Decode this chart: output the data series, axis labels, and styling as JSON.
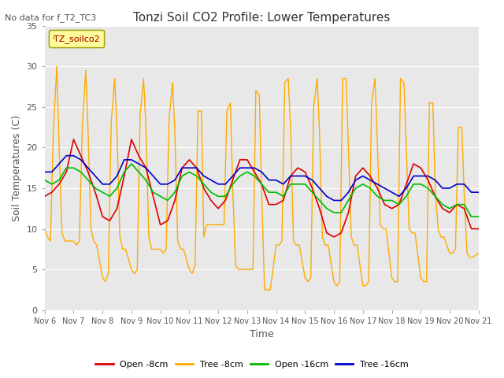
{
  "title": "Tonzi Soil CO2 Profile: Lower Temperatures",
  "subtitle": "No data for f_T2_TC3",
  "ylabel": "Soil Temperatures (C)",
  "xlabel": "Time",
  "legend_label": "TZ_soilco2",
  "xtick_labels": [
    "Nov 6",
    "Nov 7",
    "Nov 8",
    "Nov 9",
    "Nov 10",
    "Nov 11",
    "Nov 12",
    "Nov 13",
    "Nov 14",
    "Nov 15",
    "Nov 16",
    "Nov 17",
    "Nov 18",
    "Nov 19",
    "Nov 20",
    "Nov 21"
  ],
  "ylim": [
    0,
    35
  ],
  "xlim": [
    0,
    15
  ],
  "plot_bg_color": "#e8e8e8",
  "grid_color": "#ffffff",
  "series": [
    {
      "name": "Open -8cm",
      "color": "#dd0000"
    },
    {
      "name": "Tree -8cm",
      "color": "#ffaa00"
    },
    {
      "name": "Open -16cm",
      "color": "#00bb00"
    },
    {
      "name": "Tree -16cm",
      "color": "#0000cc"
    }
  ],
  "open8_x": [
    0.0,
    0.25,
    0.5,
    0.75,
    1.0,
    1.25,
    1.5,
    1.75,
    2.0,
    2.25,
    2.5,
    2.75,
    3.0,
    3.25,
    3.5,
    3.75,
    4.0,
    4.25,
    4.5,
    4.75,
    5.0,
    5.25,
    5.5,
    5.75,
    6.0,
    6.25,
    6.5,
    6.75,
    7.0,
    7.25,
    7.5,
    7.75,
    8.0,
    8.25,
    8.5,
    8.75,
    9.0,
    9.25,
    9.5,
    9.75,
    10.0,
    10.25,
    10.5,
    10.75,
    11.0,
    11.25,
    11.5,
    11.75,
    12.0,
    12.25,
    12.5,
    12.75,
    13.0,
    13.25,
    13.5,
    13.75,
    14.0,
    14.25,
    14.5,
    14.75,
    15.0
  ],
  "open8_y": [
    14.0,
    14.5,
    15.5,
    17.0,
    21.0,
    19.0,
    17.0,
    14.5,
    11.5,
    11.0,
    12.5,
    16.5,
    21.0,
    19.0,
    17.5,
    14.0,
    10.5,
    11.0,
    13.5,
    17.5,
    18.5,
    17.5,
    15.0,
    13.5,
    12.5,
    13.5,
    16.0,
    18.5,
    18.5,
    17.0,
    15.5,
    13.0,
    13.0,
    13.5,
    16.5,
    17.5,
    17.0,
    15.0,
    12.5,
    9.5,
    9.0,
    9.5,
    12.0,
    16.5,
    17.5,
    16.5,
    15.0,
    13.0,
    12.5,
    13.0,
    15.5,
    18.0,
    17.5,
    16.0,
    14.0,
    12.5,
    12.0,
    13.0,
    12.5,
    10.0,
    10.0
  ],
  "tree8_x": [
    0.0,
    0.1,
    0.2,
    0.3,
    0.42,
    0.5,
    0.6,
    0.7,
    0.8,
    1.0,
    1.1,
    1.2,
    1.3,
    1.42,
    1.5,
    1.6,
    1.7,
    1.8,
    2.0,
    2.1,
    2.2,
    2.3,
    2.42,
    2.5,
    2.6,
    2.7,
    2.8,
    3.0,
    3.1,
    3.2,
    3.3,
    3.42,
    3.5,
    3.6,
    3.7,
    3.8,
    4.0,
    4.1,
    4.2,
    4.3,
    4.42,
    4.5,
    4.6,
    4.7,
    4.8,
    5.0,
    5.1,
    5.2,
    5.3,
    5.42,
    5.5,
    5.6,
    5.7,
    5.8,
    6.0,
    6.1,
    6.2,
    6.3,
    6.42,
    6.5,
    6.6,
    6.7,
    6.8,
    7.0,
    7.1,
    7.2,
    7.3,
    7.42,
    7.5,
    7.6,
    7.7,
    7.8,
    8.0,
    8.1,
    8.2,
    8.3,
    8.42,
    8.5,
    8.6,
    8.7,
    8.8,
    9.0,
    9.1,
    9.2,
    9.3,
    9.42,
    9.5,
    9.6,
    9.7,
    9.8,
    10.0,
    10.1,
    10.2,
    10.3,
    10.42,
    10.5,
    10.6,
    10.7,
    10.8,
    11.0,
    11.1,
    11.2,
    11.3,
    11.42,
    11.5,
    11.6,
    11.7,
    11.8,
    12.0,
    12.1,
    12.2,
    12.3,
    12.42,
    12.5,
    12.6,
    12.7,
    12.8,
    13.0,
    13.1,
    13.2,
    13.3,
    13.42,
    13.5,
    13.6,
    13.7,
    13.8,
    14.0,
    14.1,
    14.2,
    14.3,
    14.42,
    14.5,
    14.6,
    14.7,
    14.8,
    15.0
  ],
  "tree8_y": [
    10.0,
    9.0,
    8.5,
    22.0,
    30.0,
    20.0,
    9.5,
    8.5,
    8.5,
    8.5,
    8.0,
    8.5,
    22.5,
    29.5,
    22.0,
    10.0,
    8.5,
    8.0,
    4.0,
    3.5,
    4.5,
    23.0,
    28.5,
    22.0,
    9.0,
    7.5,
    7.5,
    5.0,
    4.5,
    5.0,
    24.0,
    28.5,
    22.5,
    9.0,
    7.5,
    7.5,
    7.5,
    7.0,
    7.5,
    23.5,
    28.0,
    22.0,
    8.5,
    7.5,
    7.5,
    5.0,
    4.5,
    5.5,
    24.5,
    24.5,
    9.0,
    10.5,
    10.5,
    10.5,
    10.5,
    10.5,
    10.5,
    24.5,
    25.5,
    15.0,
    5.5,
    5.0,
    5.0,
    5.0,
    5.0,
    5.0,
    27.0,
    26.5,
    14.5,
    2.5,
    2.5,
    2.5,
    8.0,
    8.0,
    8.5,
    28.0,
    28.5,
    22.5,
    8.5,
    8.0,
    8.0,
    4.0,
    3.5,
    4.0,
    25.0,
    28.5,
    22.0,
    9.0,
    8.0,
    8.0,
    3.5,
    3.0,
    3.5,
    28.5,
    28.5,
    20.0,
    9.0,
    8.0,
    8.0,
    3.0,
    3.0,
    3.5,
    25.5,
    28.5,
    20.5,
    10.5,
    10.0,
    10.0,
    4.0,
    3.5,
    3.5,
    28.5,
    28.0,
    20.0,
    10.0,
    9.5,
    9.5,
    4.0,
    3.5,
    3.5,
    25.5,
    25.5,
    15.0,
    10.0,
    9.0,
    9.0,
    7.0,
    7.0,
    7.5,
    22.5,
    22.5,
    14.5,
    7.0,
    6.5,
    6.5,
    7.0
  ],
  "open16_x": [
    0.0,
    0.25,
    0.5,
    0.75,
    1.0,
    1.25,
    1.5,
    1.75,
    2.0,
    2.25,
    2.5,
    2.75,
    3.0,
    3.25,
    3.5,
    3.75,
    4.0,
    4.25,
    4.5,
    4.75,
    5.0,
    5.25,
    5.5,
    5.75,
    6.0,
    6.25,
    6.5,
    6.75,
    7.0,
    7.25,
    7.5,
    7.75,
    8.0,
    8.25,
    8.5,
    8.75,
    9.0,
    9.25,
    9.5,
    9.75,
    10.0,
    10.25,
    10.5,
    10.75,
    11.0,
    11.25,
    11.5,
    11.75,
    12.0,
    12.25,
    12.5,
    12.75,
    13.0,
    13.25,
    13.5,
    13.75,
    14.0,
    14.25,
    14.5,
    14.75,
    15.0
  ],
  "open16_y": [
    16.0,
    15.5,
    16.0,
    17.5,
    17.5,
    17.0,
    16.0,
    15.0,
    14.5,
    14.0,
    15.0,
    17.0,
    18.0,
    17.0,
    16.0,
    14.5,
    14.0,
    13.5,
    14.5,
    16.5,
    17.0,
    16.5,
    15.5,
    14.5,
    14.0,
    14.0,
    15.5,
    16.5,
    17.0,
    16.5,
    15.5,
    14.5,
    14.5,
    14.0,
    15.5,
    15.5,
    15.5,
    14.5,
    13.5,
    12.5,
    12.0,
    12.0,
    13.5,
    15.0,
    15.5,
    15.0,
    14.0,
    13.5,
    13.5,
    13.0,
    14.0,
    15.5,
    15.5,
    15.0,
    14.0,
    13.0,
    12.5,
    13.0,
    13.0,
    11.5,
    11.5
  ],
  "tree16_x": [
    0.0,
    0.25,
    0.5,
    0.75,
    1.0,
    1.25,
    1.5,
    1.75,
    2.0,
    2.25,
    2.5,
    2.75,
    3.0,
    3.25,
    3.5,
    3.75,
    4.0,
    4.25,
    4.5,
    4.75,
    5.0,
    5.25,
    5.5,
    5.75,
    6.0,
    6.25,
    6.5,
    6.75,
    7.0,
    7.25,
    7.5,
    7.75,
    8.0,
    8.25,
    8.5,
    8.75,
    9.0,
    9.25,
    9.5,
    9.75,
    10.0,
    10.25,
    10.5,
    10.75,
    11.0,
    11.25,
    11.5,
    11.75,
    12.0,
    12.25,
    12.5,
    12.75,
    13.0,
    13.25,
    13.5,
    13.75,
    14.0,
    14.25,
    14.5,
    14.75,
    15.0
  ],
  "tree16_y": [
    17.0,
    17.0,
    18.0,
    19.0,
    19.0,
    18.5,
    17.5,
    16.5,
    15.5,
    15.5,
    16.5,
    18.5,
    18.5,
    18.0,
    17.5,
    16.5,
    15.5,
    15.5,
    16.0,
    17.5,
    17.5,
    17.5,
    16.5,
    16.0,
    15.5,
    15.5,
    16.5,
    17.5,
    17.5,
    17.5,
    17.0,
    16.0,
    16.0,
    15.5,
    16.5,
    16.5,
    16.5,
    16.0,
    15.0,
    14.0,
    13.5,
    13.5,
    14.5,
    16.0,
    16.5,
    16.0,
    15.5,
    15.0,
    14.5,
    14.0,
    15.0,
    16.5,
    16.5,
    16.5,
    16.0,
    15.0,
    15.0,
    15.5,
    15.5,
    14.5,
    14.5
  ]
}
